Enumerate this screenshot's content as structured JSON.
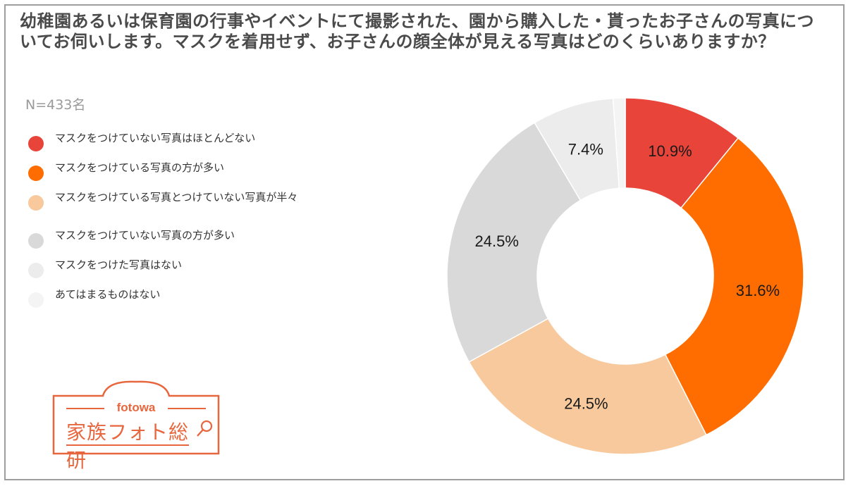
{
  "title": "幼稚園あるいは保育園の行事やイベントにて撮影された、園から購入した・貰ったお子さんの写真についてお伺いします。マスクを着用せず、お子さんの顔全体が見える写真はどのくらいありますか？",
  "sample": "N=433名",
  "logo": {
    "brand": "fotowa",
    "name": "家族フォト総研"
  },
  "colors": {
    "accent": "#e8663d",
    "border": "#9e9e9e"
  },
  "chart_data": {
    "type": "pie",
    "donut": true,
    "legend_position": "left",
    "categories": [
      "マスクをつけていない写真はほとんどない",
      "マスクをつけている写真の方が多い",
      "マスクをつけている写真とつけていない写真が半々",
      "マスクをつけていない写真の方が多い",
      "マスクをつけた写真はない",
      "あてはまるものはない"
    ],
    "values": [
      10.9,
      31.6,
      24.5,
      24.5,
      7.4,
      1.1
    ],
    "labels": [
      "10.9%",
      "31.6%",
      "24.5%",
      "24.5%",
      "7.4%",
      ""
    ],
    "colors": [
      "#e8443a",
      "#ff6d01",
      "#f8c99c",
      "#d9d9d9",
      "#ececec",
      "#f4f4f4"
    ]
  }
}
